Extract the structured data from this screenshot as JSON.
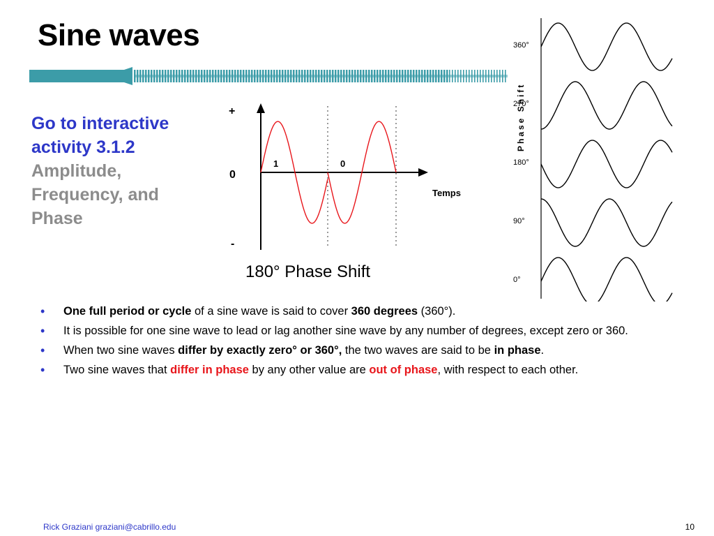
{
  "title": "Sine waves",
  "colors": {
    "accent_blue": "#2d37c8",
    "gray": "#8c8c8c",
    "red": "#e8161b",
    "teal": "#3c9ca8",
    "wave_red": "#e8161b"
  },
  "sidebar": {
    "link_line1": "Go to interactive",
    "link_line2": "activity 3.1.2",
    "sub_line1": "Amplitude,",
    "sub_line2": "Frequency, and",
    "sub_line3": "Phase"
  },
  "wave_figure": {
    "plus_label": "+",
    "zero_label": "0",
    "minus_label": "-",
    "wave1_label": "1",
    "wave2_label": "0",
    "axis_label": "Temps",
    "caption": "180° Phase Shift"
  },
  "phase_figure": {
    "axis_title": "Phase Shift",
    "labels": [
      "360°",
      "270°",
      "180°",
      "90°",
      "0°"
    ],
    "shifts_deg": [
      360,
      270,
      180,
      90,
      0
    ]
  },
  "bullets": [
    {
      "b1": "One full period or cycle",
      "t1": " of a sine wave is said to cover ",
      "b2": "360 degrees",
      "t2": " (360°)."
    },
    {
      "t1": "It is possible for one sine wave to lead or lag another sine wave by any number of degrees, except zero or 360."
    },
    {
      "t1": "When two sine waves ",
      "b1": "differ by exactly zero° or 360°,",
      "t2": " the two waves are said to be ",
      "b2": "in phase",
      "t3": "."
    },
    {
      "t1": "Two sine waves that ",
      "r1": "differ in phase",
      "t2": " by any other value are ",
      "r2": "out of phase",
      "t3": ", with respect to each other."
    }
  ],
  "footer": {
    "author": "Rick Graziani  graziani@cabrillo.edu",
    "page": "10"
  }
}
